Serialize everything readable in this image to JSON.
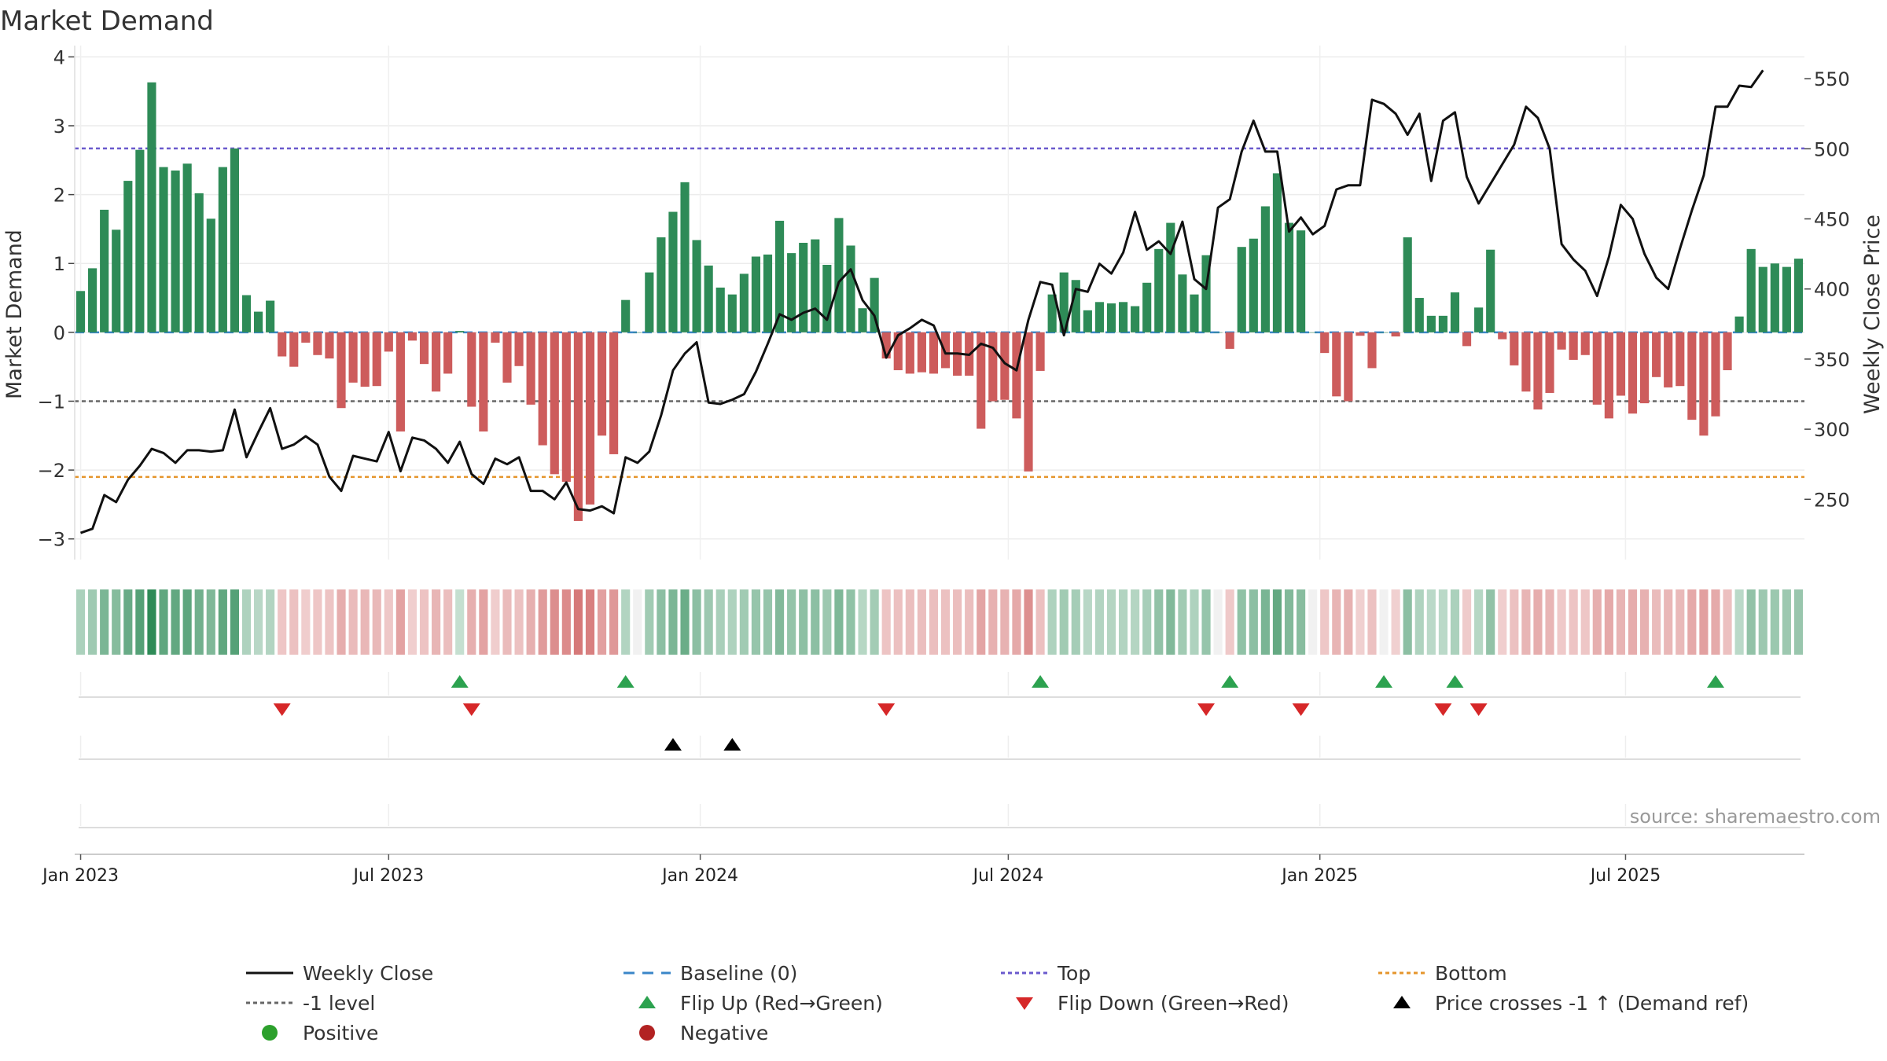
{
  "chart_data": {
    "type": "bar",
    "title": "Market Demand",
    "ylabel_left": "Market Demand",
    "ylabel_right": "Weekly Close Price",
    "source": "source: sharemaestro.com",
    "ylim_left": [
      -3.3,
      4.05
    ],
    "ylim_right": [
      207,
      568
    ],
    "yticks_left": [
      {
        "v": 4,
        "label": "4"
      },
      {
        "v": 3,
        "label": "3"
      },
      {
        "v": 2,
        "label": "2"
      },
      {
        "v": 1,
        "label": "1"
      },
      {
        "v": 0,
        "label": "0"
      },
      {
        "v": -1,
        "label": "−1"
      },
      {
        "v": -2,
        "label": "−2"
      },
      {
        "v": -3,
        "label": "−3"
      }
    ],
    "yticks_right": [
      {
        "v": 550,
        "label": "550"
      },
      {
        "v": 500,
        "label": "500"
      },
      {
        "v": 450,
        "label": "450"
      },
      {
        "v": 400,
        "label": "400"
      },
      {
        "v": 350,
        "label": "350"
      },
      {
        "v": 300,
        "label": "300"
      },
      {
        "v": 250,
        "label": "250"
      }
    ],
    "xticks": [
      {
        "week": 1,
        "label": "Jan 2023"
      },
      {
        "week": 27,
        "label": "Jul 2023"
      },
      {
        "week": 53.3,
        "label": "Jan 2024"
      },
      {
        "week": 79.3,
        "label": "Jul 2024"
      },
      {
        "week": 105.6,
        "label": "Jan 2025"
      },
      {
        "week": 131.4,
        "label": "Jul 2025"
      }
    ],
    "levels": {
      "top": 2.67,
      "minus_one": -1.0,
      "bottom": -2.1
    },
    "demand": [
      0.6,
      0.93,
      1.78,
      1.49,
      2.2,
      2.65,
      3.63,
      2.4,
      2.35,
      2.45,
      2.02,
      1.65,
      2.4,
      2.67,
      0.54,
      0.3,
      0.46,
      -0.35,
      -0.5,
      -0.15,
      -0.33,
      -0.38,
      -1.1,
      -0.73,
      -0.79,
      -0.78,
      -0.28,
      -1.44,
      -0.12,
      -0.46,
      -0.86,
      -0.6,
      0.02,
      -1.08,
      -1.44,
      -0.15,
      -0.73,
      -0.49,
      -1.05,
      -1.64,
      -2.06,
      -2.17,
      -2.74,
      -2.5,
      -1.5,
      -1.77,
      0.47,
      0.0,
      0.87,
      1.38,
      1.75,
      2.18,
      1.34,
      0.97,
      0.65,
      0.55,
      0.85,
      1.1,
      1.13,
      1.62,
      1.15,
      1.3,
      1.35,
      0.98,
      1.66,
      1.26,
      0.35,
      0.79,
      -0.38,
      -0.55,
      -0.6,
      -0.58,
      -0.6,
      -0.52,
      -0.63,
      -0.63,
      -1.4,
      -1.0,
      -0.98,
      -1.25,
      -2.02,
      -0.56,
      0.55,
      0.87,
      0.76,
      0.32,
      0.44,
      0.42,
      0.44,
      0.38,
      0.72,
      1.21,
      1.59,
      0.84,
      0.55,
      1.12,
      0.0,
      -0.24,
      1.24,
      1.36,
      1.83,
      2.31,
      1.59,
      1.48,
      0.0,
      -0.3,
      -0.93,
      -1.0,
      -0.05,
      -0.52,
      0.0,
      -0.06,
      1.38,
      0.5,
      0.24,
      0.24,
      0.58,
      -0.2,
      0.36,
      1.2,
      -0.1,
      -0.48,
      -0.86,
      -1.12,
      -0.88,
      -0.25,
      -0.4,
      -0.33,
      -1.05,
      -1.25,
      -0.92,
      -1.18,
      -1.03,
      -0.65,
      -0.8,
      -0.78,
      -1.27,
      -1.5,
      -1.22,
      -0.55,
      0.23,
      1.21,
      0.95,
      1.0,
      0.95,
      1.07
    ],
    "weekly_close": [
      226,
      229,
      253,
      248,
      264,
      274,
      286,
      283,
      276,
      285,
      285,
      284,
      285,
      314,
      280,
      298,
      315,
      286,
      289,
      295,
      289,
      266,
      256,
      281,
      279,
      277,
      298,
      270,
      294,
      292,
      286,
      276,
      291,
      268,
      261,
      279,
      275,
      280,
      256,
      256,
      250,
      262,
      243,
      242,
      245,
      240,
      280,
      276,
      284,
      310,
      342,
      354,
      362,
      319,
      318,
      321,
      325,
      341,
      361,
      382,
      378,
      383,
      386,
      378,
      405,
      414,
      392,
      381,
      351,
      367,
      372,
      378,
      374,
      354,
      354,
      353,
      361,
      358,
      347,
      342,
      378,
      405,
      403,
      367,
      400,
      398,
      418,
      411,
      426,
      455,
      428,
      434,
      425,
      448,
      407,
      400,
      458,
      464,
      498,
      520,
      498,
      498,
      441,
      451,
      439,
      445,
      471,
      474,
      474,
      535,
      532,
      525,
      510,
      525,
      477,
      520,
      526,
      480,
      461,
      475,
      489,
      503,
      530,
      522,
      500,
      432,
      421,
      413,
      395,
      423,
      460,
      450,
      425,
      408,
      400,
      429,
      456,
      481,
      530,
      530,
      545,
      544,
      556
    ],
    "series": [
      {
        "name": "Weekly Close",
        "role": "line"
      },
      {
        "name": "Baseline (0)",
        "role": "level"
      },
      {
        "name": "Top",
        "role": "level"
      },
      {
        "name": "Bottom",
        "role": "level"
      },
      {
        "name": "-1 level",
        "role": "level"
      },
      {
        "name": "Flip Up (Red→Green)",
        "role": "marker"
      },
      {
        "name": "Flip Down (Green→Red)",
        "role": "marker"
      },
      {
        "name": "Price crosses -1 ↑ (Demand ref)",
        "role": "marker"
      },
      {
        "name": "Positive",
        "role": "marker"
      },
      {
        "name": "Negative",
        "role": "marker"
      }
    ],
    "flip_up_weeks": [
      33,
      47,
      82,
      98,
      111,
      117,
      139
    ],
    "flip_down_weeks": [
      18,
      34,
      69,
      96,
      104,
      116,
      119
    ],
    "price_cross_weeks": [
      51,
      56
    ],
    "colors": {
      "positive": "#2e8b57",
      "negative": "#cd5c5c",
      "line": "#111111",
      "top": "#6a5acd",
      "bottom": "#e5952b",
      "minus_one": "#666666",
      "baseline": "#3a86c8",
      "flip_up": "#2ca24f",
      "flip_down": "#d62728",
      "cross": "#000000",
      "legend_positive": "#2ca02c",
      "legend_negative": "#b22222"
    },
    "legend": [
      {
        "label": "Weekly Close",
        "symbol": "line-solid",
        "color": "#111111"
      },
      {
        "label": "Baseline (0)",
        "symbol": "line-dashed",
        "color": "#3a86c8"
      },
      {
        "label": "Top",
        "symbol": "line-dotted",
        "color": "#6a5acd"
      },
      {
        "label": "Bottom",
        "symbol": "line-dotted",
        "color": "#e5952b"
      },
      {
        "label": "-1 level",
        "symbol": "line-dotted",
        "color": "#666666"
      },
      {
        "label": "Flip Up (Red→Green)",
        "symbol": "tri-up",
        "color": "#2ca24f"
      },
      {
        "label": "Flip Down (Green→Red)",
        "symbol": "tri-down",
        "color": "#d62728"
      },
      {
        "label": "Price crosses -1 ↑ (Demand ref)",
        "symbol": "tri-up",
        "color": "#000000"
      },
      {
        "label": "Positive",
        "symbol": "dot",
        "color": "#2ca02c"
      },
      {
        "label": "Negative",
        "symbol": "dot",
        "color": "#b22222"
      }
    ]
  }
}
